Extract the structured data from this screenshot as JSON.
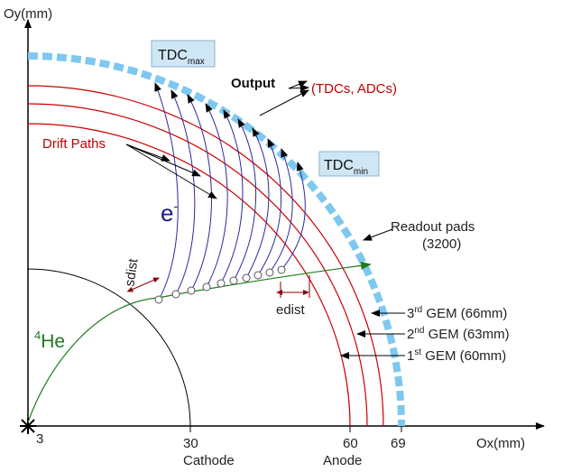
{
  "axes": {
    "y_label": "Oy(mm)",
    "x_label": "Ox(mm)",
    "origin_label": "3",
    "x_ticks": [
      {
        "label": "30",
        "sub": "Cathode"
      },
      {
        "label": "60",
        "sub": "Anode"
      },
      {
        "label": "69",
        "sub": ""
      }
    ]
  },
  "labels": {
    "tdc_max": {
      "main": "TDC",
      "sub": "max"
    },
    "tdc_min": {
      "main": "TDC",
      "sub": "min"
    },
    "output": "Output",
    "tdcs_adcs": "(TDCs, ADCs)",
    "drift_paths": "Drift Paths",
    "electron": {
      "main": "e",
      "sup": "-"
    },
    "readout_line1": "Readout pads",
    "readout_line2": "(3200)",
    "sdist": "sdist",
    "edist": "edist",
    "helium": {
      "sup": "4",
      "main": "He"
    },
    "gem3": {
      "num": "3",
      "suffix": "rd",
      "text": " GEM (66mm)"
    },
    "gem2": {
      "num": "2",
      "suffix": "nd",
      "text": " GEM (63mm)"
    },
    "gem1": {
      "num": "1",
      "suffix": "st",
      "text": " GEM (60mm)"
    }
  },
  "colors": {
    "gem": "#cc0000",
    "drift": "#2a2a9a",
    "track": "#1e7a1e",
    "pads": "#7ec8f0",
    "box": "#cfe6f5"
  }
}
